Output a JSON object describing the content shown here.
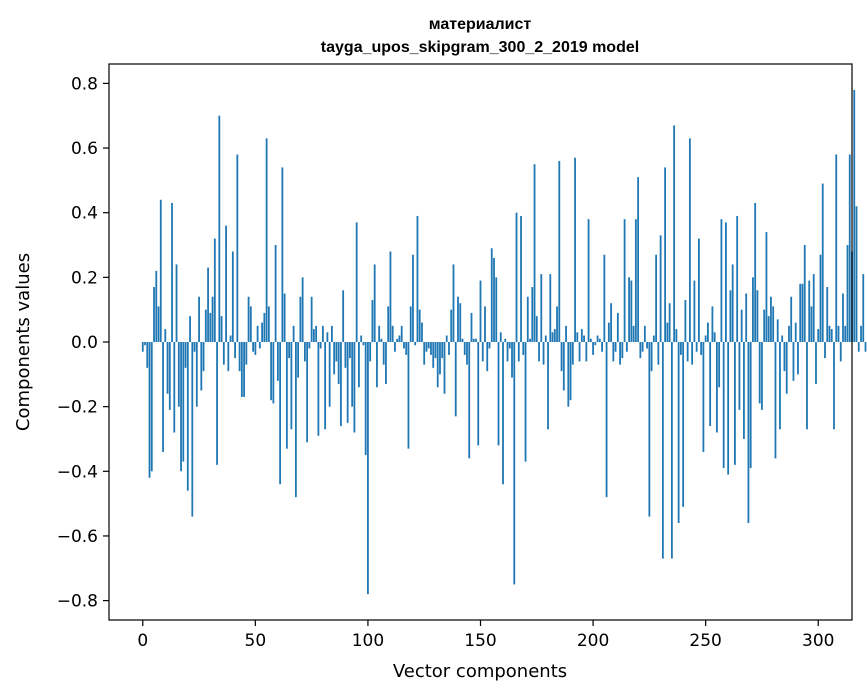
{
  "chart_data": {
    "type": "bar",
    "title_line1": "материалист",
    "title_line2": "tayga_upos_skipgram_300_2_2019 model",
    "xlabel": "Vector components",
    "ylabel": "Components values",
    "xlim": [
      -15,
      315
    ],
    "ylim": [
      -0.86,
      0.86
    ],
    "xticks": [
      0,
      50,
      100,
      150,
      200,
      250,
      300
    ],
    "xtick_labels": [
      "0",
      "50",
      "100",
      "150",
      "200",
      "250",
      "300"
    ],
    "yticks": [
      -0.8,
      -0.6,
      -0.4,
      -0.2,
      0.0,
      0.2,
      0.4,
      0.6,
      0.8
    ],
    "ytick_labels": [
      "−0.8",
      "−0.6",
      "−0.4",
      "−0.2",
      "0.0",
      "0.2",
      "0.4",
      "0.6",
      "0.8"
    ],
    "bar_color": "#1f77b4",
    "values": [
      -0.03,
      -0.01,
      -0.08,
      -0.42,
      -0.4,
      0.17,
      0.22,
      0.11,
      0.44,
      -0.34,
      0.04,
      -0.16,
      -0.21,
      0.43,
      -0.28,
      0.24,
      -0.2,
      -0.4,
      -0.37,
      -0.08,
      -0.46,
      0.08,
      -0.54,
      -0.03,
      -0.2,
      0.14,
      -0.15,
      -0.09,
      0.1,
      0.23,
      0.09,
      0.14,
      0.32,
      -0.38,
      0.7,
      0.08,
      -0.07,
      0.36,
      -0.09,
      0.02,
      0.28,
      -0.05,
      0.58,
      -0.09,
      -0.17,
      -0.17,
      -0.07,
      0.14,
      0.11,
      -0.03,
      -0.04,
      0.05,
      -0.02,
      0.06,
      0.09,
      0.63,
      0.11,
      -0.18,
      -0.19,
      0.3,
      -0.12,
      -0.44,
      0.54,
      0.15,
      -0.33,
      -0.05,
      -0.27,
      0.05,
      -0.48,
      -0.11,
      0.14,
      0.2,
      -0.06,
      -0.31,
      -0.02,
      0.14,
      0.04,
      0.05,
      -0.29,
      -0.02,
      0.05,
      -0.27,
      0.03,
      -0.2,
      0.05,
      -0.1,
      -0.06,
      -0.13,
      -0.26,
      0.16,
      -0.08,
      -0.25,
      -0.05,
      -0.2,
      -0.28,
      0.37,
      -0.14,
      0.02,
      -0.01,
      -0.35,
      -0.78,
      -0.06,
      0.13,
      0.24,
      -0.14,
      0.05,
      0.01,
      -0.07,
      -0.13,
      0.11,
      0.28,
      0.05,
      -0.03,
      0.01,
      0.02,
      0.05,
      -0.02,
      -0.04,
      -0.33,
      0.11,
      0.27,
      -0.01,
      0.39,
      0.1,
      0.06,
      -0.07,
      -0.03,
      -0.02,
      -0.04,
      -0.08,
      -0.05,
      -0.14,
      -0.1,
      -0.05,
      -0.16,
      0.02,
      -0.04,
      0.1,
      0.24,
      -0.23,
      0.14,
      0.12,
      0.01,
      -0.04,
      -0.07,
      -0.36,
      0.09,
      0.01,
      0.01,
      -0.32,
      0.19,
      -0.06,
      0.11,
      -0.09,
      -0.02,
      0.29,
      0.26,
      0.2,
      -0.32,
      0.03,
      -0.44,
      0.01,
      -0.06,
      -0.02,
      -0.11,
      -0.75,
      0.4,
      -0.06,
      0.39,
      -0.04,
      -0.37,
      0.14,
      0.01,
      0.17,
      0.55,
      0.08,
      -0.06,
      0.21,
      -0.07,
      0.02,
      -0.27,
      0.21,
      0.03,
      0.04,
      0.11,
      0.56,
      -0.09,
      -0.15,
      0.05,
      -0.2,
      -0.18,
      -0.07,
      0.57,
      0.03,
      -0.06,
      0.04,
      0.02,
      -0.06,
      0.38,
      0.01,
      -0.04,
      -0.01,
      0.02,
      0.01,
      -0.03,
      0.27,
      -0.48,
      0.06,
      0.12,
      -0.06,
      -0.03,
      0.09,
      -0.07,
      -0.05,
      0.38,
      -0.03,
      0.2,
      0.19,
      0.05,
      0.38,
      0.51,
      -0.05,
      -0.03,
      0.05,
      -0.02,
      -0.54,
      -0.09,
      0.02,
      0.27,
      -0.07,
      0.33,
      -0.67,
      0.54,
      0.06,
      0.12,
      -0.67,
      0.67,
      0.04,
      -0.56,
      -0.04,
      -0.51,
      0.13,
      -0.06,
      0.63,
      -0.07,
      0.19,
      -0.03,
      0.32,
      -0.04,
      -0.34,
      0.02,
      0.06,
      -0.26,
      0.11,
      0.03,
      -0.28,
      -0.14,
      0.38,
      -0.39,
      0.37,
      -0.41,
      0.16,
      0.24,
      -0.38,
      0.39,
      -0.21,
      0.1,
      -0.3,
      0.15,
      -0.56,
      -0.39,
      0.2,
      0.43,
      0.16,
      -0.19,
      -0.21,
      0.1,
      0.34,
      0.08,
      0.14,
      0.11,
      -0.36,
      0.07,
      -0.27,
      0.02,
      -0.09,
      -0.16,
      0.05,
      0.14,
      -0.12,
      0.06,
      -0.1,
      0.18,
      0.18,
      0.3,
      -0.27,
      0.19,
      0.11,
      0.21,
      -0.13,
      0.04,
      0.27,
      0.49,
      -0.05,
      0.17,
      0.05,
      0.04,
      -0.27,
      0.58,
      0.05,
      -0.06,
      0.15,
      0.05,
      0.3,
      0.58,
      0.28,
      0.78,
      0.42,
      -0.03,
      0.05,
      0.21,
      -0.03
    ]
  }
}
